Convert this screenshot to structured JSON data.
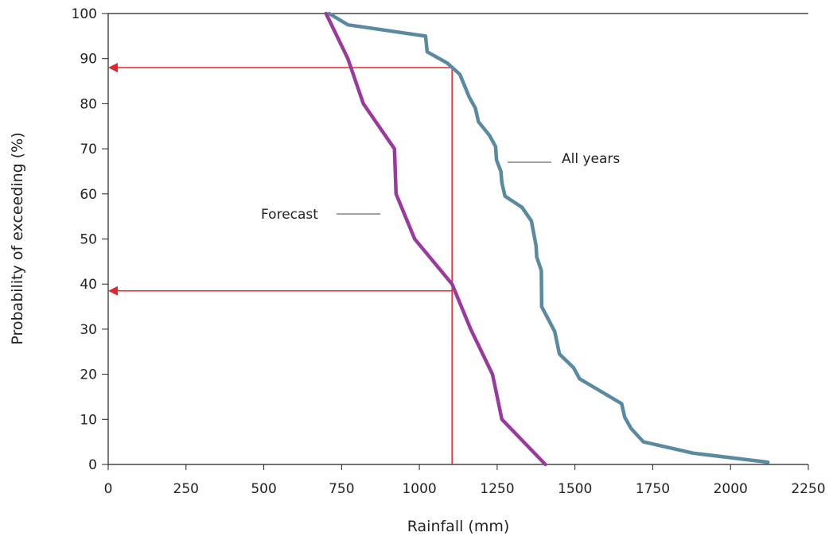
{
  "chart_data": {
    "type": "line",
    "title": "",
    "xlabel": "Rainfall (mm)",
    "ylabel": "Probability of exceeding (%)",
    "xlim": [
      0,
      2250
    ],
    "ylim": [
      0,
      100
    ],
    "x_ticks": [
      "0",
      "250",
      "500",
      "750",
      "1000",
      "1250",
      "1500",
      "1750",
      "2000",
      "2250"
    ],
    "y_ticks": [
      "0",
      "10",
      "20",
      "30",
      "40",
      "50",
      "60",
      "70",
      "80",
      "90",
      "100"
    ],
    "grid": false,
    "series": [
      {
        "name": "All years",
        "color": "#5a8aa0",
        "points": [
          [
            710,
            100
          ],
          [
            770,
            97.5
          ],
          [
            1020,
            95
          ],
          [
            1025,
            91.5
          ],
          [
            1090,
            89
          ],
          [
            1130,
            86.5
          ],
          [
            1160,
            81.5
          ],
          [
            1180,
            79
          ],
          [
            1190,
            76
          ],
          [
            1225,
            73
          ],
          [
            1245,
            70.5
          ],
          [
            1248,
            67.5
          ],
          [
            1262,
            65
          ],
          [
            1265,
            62.5
          ],
          [
            1275,
            59.5
          ],
          [
            1330,
            57
          ],
          [
            1360,
            54
          ],
          [
            1375,
            48.5
          ],
          [
            1377,
            46
          ],
          [
            1392,
            43
          ],
          [
            1393,
            35
          ],
          [
            1435,
            29.5
          ],
          [
            1450,
            24.5
          ],
          [
            1495,
            21.5
          ],
          [
            1515,
            19
          ],
          [
            1650,
            13.5
          ],
          [
            1660,
            10.5
          ],
          [
            1680,
            8
          ],
          [
            1720,
            5
          ],
          [
            1880,
            2.5
          ],
          [
            2120,
            0.5
          ]
        ]
      },
      {
        "name": "Forecast",
        "color": "#9b3a9e",
        "points": [
          [
            700,
            100
          ],
          [
            770,
            90
          ],
          [
            820,
            80
          ],
          [
            920,
            70
          ],
          [
            925,
            60
          ],
          [
            985,
            50
          ],
          [
            1105,
            40
          ],
          [
            1165,
            30
          ],
          [
            1235,
            20
          ],
          [
            1265,
            10
          ],
          [
            1405,
            0
          ]
        ]
      }
    ],
    "annotations": {
      "reference_line": {
        "x": 1105,
        "color": "#e8232c"
      },
      "arrows": [
        {
          "y": 88,
          "from_x": 1105,
          "to_x": 0,
          "color": "#e8232c"
        },
        {
          "y": 38.5,
          "from_x": 1105,
          "to_x": 0,
          "color": "#e8232c"
        }
      ],
      "all_years_label": "All years",
      "forecast_label": "Forecast"
    }
  }
}
